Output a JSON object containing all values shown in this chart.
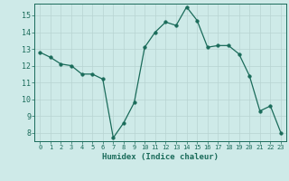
{
  "x": [
    0,
    1,
    2,
    3,
    4,
    5,
    6,
    7,
    8,
    9,
    10,
    11,
    12,
    13,
    14,
    15,
    16,
    17,
    18,
    19,
    20,
    21,
    22,
    23
  ],
  "y": [
    12.8,
    12.5,
    12.1,
    12.0,
    11.5,
    11.5,
    11.2,
    7.7,
    8.6,
    9.8,
    13.1,
    14.0,
    14.6,
    14.4,
    15.5,
    14.7,
    13.1,
    13.2,
    13.2,
    12.7,
    11.4,
    9.3,
    9.6,
    8.0
  ],
  "line_color": "#1a6b5a",
  "marker": "o",
  "marker_size": 2.5,
  "xlabel": "Humidex (Indice chaleur)",
  "xlim": [
    -0.5,
    23.5
  ],
  "ylim": [
    7.5,
    15.7
  ],
  "yticks": [
    8,
    9,
    10,
    11,
    12,
    13,
    14,
    15
  ],
  "xticks": [
    0,
    1,
    2,
    3,
    4,
    5,
    6,
    7,
    8,
    9,
    10,
    11,
    12,
    13,
    14,
    15,
    16,
    17,
    18,
    19,
    20,
    21,
    22,
    23
  ],
  "bg_color": "#ceeae8",
  "grid_color": "#b8d4d2",
  "tick_color": "#1a6b5a",
  "label_color": "#1a6b5a",
  "axis_color": "#1a6b5a"
}
